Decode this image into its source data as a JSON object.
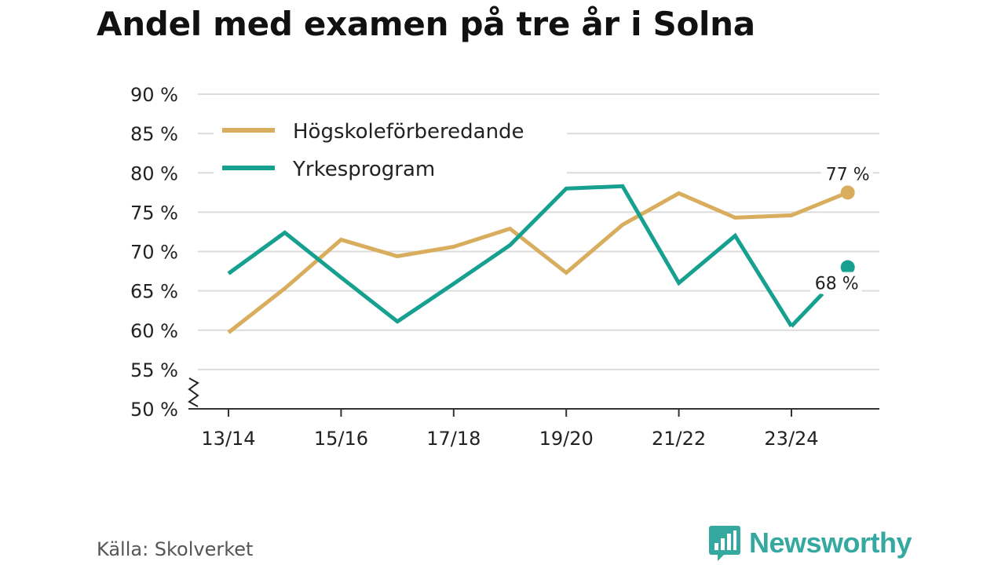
{
  "title": "Andel med examen på tre år i Solna",
  "source": "Källa: Skolverket",
  "brand": {
    "name": "Newsworthy",
    "icon": "bar-chart-speech-bubble-icon",
    "color": "#35a9a0"
  },
  "chart_data": {
    "type": "line",
    "title": "Andel med examen på tre år i Solna",
    "x": [
      "13/14",
      "14/15",
      "15/16",
      "16/17",
      "17/18",
      "18/19",
      "19/20",
      "20/21",
      "21/22",
      "22/23",
      "23/24",
      "24/25"
    ],
    "x_tick_labels": [
      "13/14",
      "15/16",
      "17/18",
      "19/20",
      "21/22",
      "23/24"
    ],
    "y_tick_labels": [
      "50 %",
      "55 %",
      "60 %",
      "65 %",
      "70 %",
      "75 %",
      "80 %",
      "85 %",
      "90 %"
    ],
    "ylim": [
      50,
      90
    ],
    "y_axis_break": true,
    "grid": true,
    "legend_position": "top-left",
    "series": [
      {
        "name": "Högskoleförberedande",
        "color": "#d8ae5e",
        "values": [
          59.7,
          65.3,
          71.5,
          69.4,
          70.6,
          72.9,
          67.3,
          73.4,
          77.4,
          74.3,
          74.6,
          77.5
        ],
        "end_label": "77 %"
      },
      {
        "name": "Yrkesprogram",
        "color": "#15a090",
        "values": [
          67.2,
          72.4,
          66.7,
          61.1,
          65.9,
          70.8,
          78.0,
          78.3,
          66.0,
          72.0,
          60.5,
          68.0
        ],
        "end_label": "68 %",
        "last_segment_hidden": true
      }
    ]
  }
}
